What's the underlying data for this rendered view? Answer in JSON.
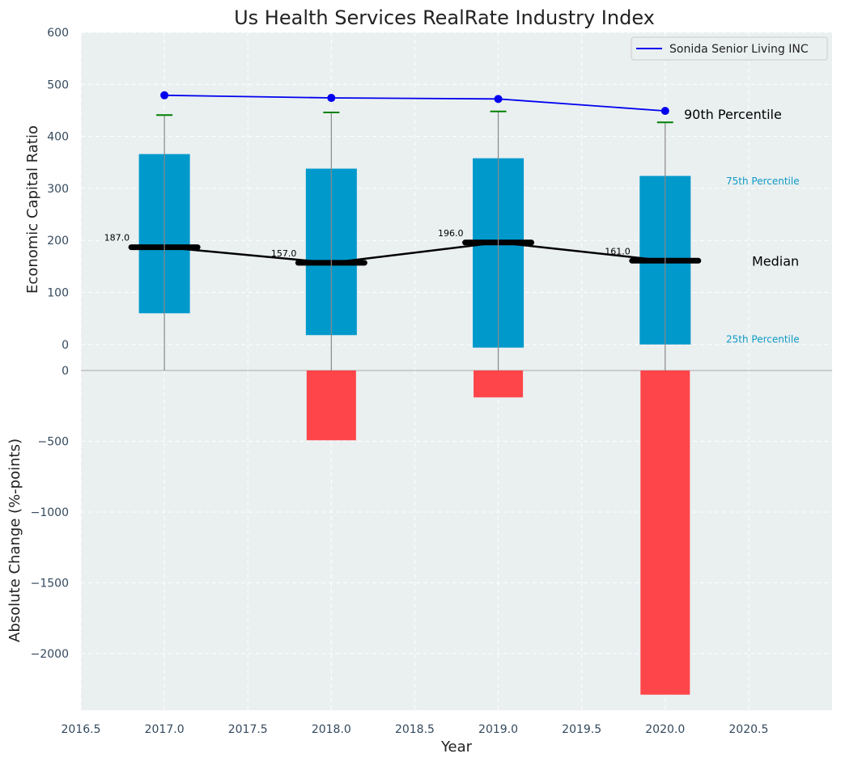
{
  "chart_data": [
    {
      "type": "bar",
      "panel": "top",
      "title": "Us Health Services RealRate Industry Index",
      "ylabel": "Economic Capital Ratio",
      "xlim": [
        2016.5,
        2021.0
      ],
      "ylim": [
        -50,
        600
      ],
      "yticks": [
        0,
        100,
        200,
        300,
        400,
        500,
        600
      ],
      "grid": true,
      "x": [
        2017,
        2018,
        2019,
        2020
      ],
      "percentile_25": [
        60,
        18,
        -6,
        0
      ],
      "percentile_75": [
        366,
        338,
        358,
        324
      ],
      "percentile_90": [
        441,
        446,
        448,
        427
      ],
      "median": [
        187.0,
        157.0,
        196.0,
        161.0
      ],
      "median_labels": [
        "187.0",
        "157.0",
        "196.0",
        "161.0"
      ],
      "series": [
        {
          "name": "Sonida Senior Living INC",
          "values": [
            479,
            474,
            472,
            449
          ]
        }
      ],
      "annotations": {
        "p90": "90th Percentile",
        "p75": "75th Percentile",
        "median": "Median",
        "p25": "25th Percentile"
      },
      "legend": "top-right"
    },
    {
      "type": "bar",
      "panel": "bottom",
      "xlabel": "Year",
      "ylabel": "Absolute Change (%-points)",
      "xlim": [
        2016.5,
        2021.0
      ],
      "ylim": [
        -2400,
        0
      ],
      "yticks": [
        0,
        -500,
        -1000,
        -1500,
        -2000
      ],
      "ytick_labels": [
        "0",
        "−500",
        "−1000",
        "−1500",
        "−2000"
      ],
      "xticks": [
        2016.5,
        2017.0,
        2017.5,
        2018.0,
        2018.5,
        2019.0,
        2019.5,
        2020.0,
        2020.5
      ],
      "xtick_labels": [
        "2016.5",
        "2017.0",
        "2017.5",
        "2018.0",
        "2018.5",
        "2019.0",
        "2019.5",
        "2020.0",
        "2020.5"
      ],
      "grid": true,
      "x": [
        2017,
        2018,
        2019,
        2020
      ],
      "values": [
        0,
        -493,
        -190,
        -2290
      ]
    }
  ],
  "colors": {
    "plot_bg": "#eaeff0",
    "box": "#0099cc",
    "whisker": "#888888",
    "p90_cap": "#008000",
    "company_line": "#0000ee",
    "median_line": "#000000",
    "change_bar": "#ff3b3f"
  }
}
